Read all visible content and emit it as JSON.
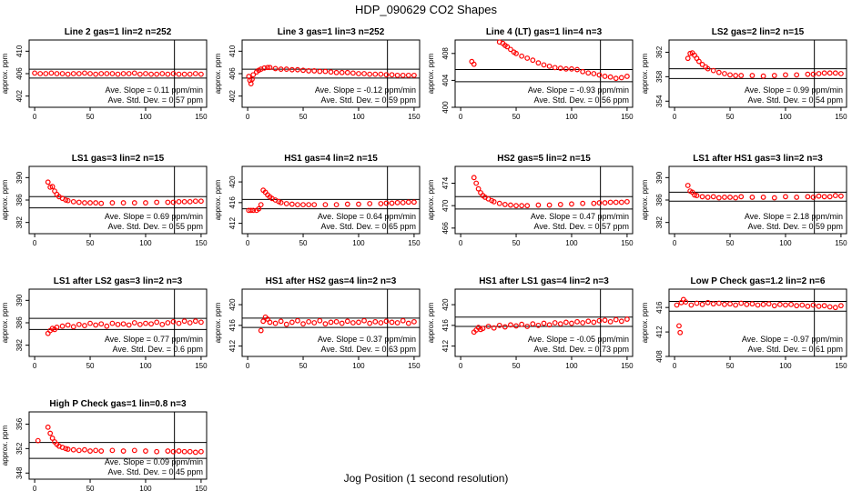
{
  "figure": {
    "title": "HDP_090629  CO2 Shapes",
    "xlabel": "Jog Position (1 second resolution)"
  },
  "chart_data": [
    {
      "type": "scatter",
      "title": "Line 2 gas=1 lin=2 n=252",
      "ylabel": "approx. ppm",
      "xlim": [
        -5,
        155
      ],
      "ylim": [
        400,
        412
      ],
      "yticks": [
        402,
        406,
        410
      ],
      "xticks": [
        0,
        50,
        100,
        150
      ],
      "vline": 126,
      "hlines": [
        406.8,
        405.2
      ],
      "slope_text": "Ave. Slope =  0.11  ppm/min",
      "std_text": "Ave. Std. Dev. =  0.57  ppm",
      "color": "#ff0000",
      "x": [
        0,
        5,
        10,
        15,
        20,
        25,
        30,
        35,
        40,
        45,
        50,
        55,
        60,
        65,
        70,
        75,
        80,
        85,
        90,
        95,
        100,
        105,
        110,
        115,
        120,
        125,
        130,
        135,
        140,
        145,
        150
      ],
      "y": [
        406.1,
        406.0,
        406.0,
        406.1,
        406.0,
        406.0,
        405.9,
        406.0,
        406.0,
        406.1,
        406.0,
        405.9,
        406.0,
        406.0,
        406.0,
        405.9,
        406.0,
        406.0,
        406.1,
        405.9,
        406.0,
        405.9,
        405.9,
        406.0,
        405.9,
        406.0,
        405.9,
        405.9,
        405.9,
        406.0,
        405.9
      ]
    },
    {
      "type": "scatter",
      "title": "Line 3 gas=1 lin=3 n=252",
      "ylabel": "approx. ppm",
      "xlim": [
        -5,
        155
      ],
      "ylim": [
        400,
        412
      ],
      "yticks": [
        402,
        406,
        410
      ],
      "xticks": [
        0,
        50,
        100,
        150
      ],
      "vline": 126,
      "hlines": [
        406.8,
        405.2
      ],
      "slope_text": "Ave. Slope =  -0.12  ppm/min",
      "std_text": "Ave. Std. Dev. =  0.59  ppm",
      "color": "#ff0000",
      "x": [
        1,
        2,
        3,
        4,
        5,
        8,
        10,
        12,
        15,
        18,
        20,
        25,
        30,
        35,
        40,
        45,
        50,
        55,
        60,
        65,
        70,
        75,
        80,
        85,
        90,
        95,
        100,
        105,
        110,
        115,
        120,
        125,
        130,
        135,
        140,
        145,
        150
      ],
      "y": [
        405.5,
        404.8,
        404.2,
        405.0,
        405.8,
        406.3,
        406.6,
        406.8,
        407.0,
        407.1,
        407.1,
        406.9,
        406.8,
        406.8,
        406.7,
        406.7,
        406.6,
        406.5,
        406.5,
        406.4,
        406.4,
        406.3,
        406.2,
        406.2,
        406.2,
        406.1,
        406.0,
        406.0,
        405.9,
        405.9,
        405.9,
        405.8,
        405.8,
        405.7,
        405.7,
        405.7,
        405.7
      ]
    },
    {
      "type": "scatter",
      "title": "Line 4 (LT) gas=1 lin=4 n=3",
      "ylabel": "approx. ppm",
      "xlim": [
        -5,
        155
      ],
      "ylim": [
        400,
        410
      ],
      "yticks": [
        400,
        404,
        408
      ],
      "xticks": [
        0,
        50,
        100,
        150
      ],
      "vline": 126,
      "hlines": [
        405.6,
        403.8
      ],
      "slope_text": "Ave. Slope =  -0.93  ppm/min",
      "std_text": "Ave. Std. Dev. =  0.56  ppm",
      "color": "#ff0000",
      "x": [
        10,
        12,
        35,
        38,
        40,
        42,
        45,
        48,
        50,
        55,
        60,
        65,
        70,
        75,
        80,
        85,
        90,
        95,
        100,
        105,
        110,
        115,
        120,
        125,
        130,
        135,
        140,
        145,
        150
      ],
      "y": [
        406.8,
        406.4,
        409.7,
        409.5,
        409.2,
        409.0,
        408.6,
        408.2,
        408.0,
        407.6,
        407.3,
        407.0,
        406.6,
        406.3,
        406.1,
        405.9,
        405.8,
        405.7,
        405.7,
        405.6,
        405.3,
        405.1,
        405.0,
        404.8,
        404.6,
        404.5,
        404.3,
        404.4,
        404.6
      ]
    },
    {
      "type": "scatter",
      "title": "LS2 gas=2 lin=2 n=15",
      "ylabel": "approx. ppm",
      "xlim": [
        -5,
        155
      ],
      "ylim": [
        353,
        364
      ],
      "yticks": [
        354,
        358,
        362
      ],
      "xticks": [
        0,
        50,
        100,
        150
      ],
      "vline": 126,
      "hlines": [
        359.3,
        357.7
      ],
      "slope_text": "Ave. Slope =  0.99  ppm/min",
      "std_text": "Ave. Std. Dev. =  0.54  ppm",
      "color": "#ff0000",
      "x": [
        12,
        14,
        16,
        18,
        20,
        22,
        25,
        28,
        30,
        35,
        40,
        45,
        50,
        55,
        60,
        70,
        80,
        90,
        100,
        110,
        120,
        125,
        130,
        135,
        140,
        145,
        150
      ],
      "y": [
        361.0,
        361.8,
        361.9,
        361.5,
        361.0,
        360.5,
        360.0,
        359.6,
        359.3,
        359.0,
        358.7,
        358.5,
        358.3,
        358.2,
        358.2,
        358.2,
        358.1,
        358.2,
        358.3,
        358.3,
        358.4,
        358.4,
        358.5,
        358.6,
        358.6,
        358.6,
        358.5
      ]
    },
    {
      "type": "scatter",
      "title": "LS1 gas=3 lin=2 n=15",
      "ylabel": "approx. ppm",
      "xlim": [
        -5,
        155
      ],
      "ylim": [
        380,
        392
      ],
      "yticks": [
        382,
        386,
        390
      ],
      "xticks": [
        0,
        50,
        100,
        150
      ],
      "vline": 126,
      "hlines": [
        386.6,
        384.6
      ],
      "slope_text": "Ave. Slope =  0.69  ppm/min",
      "std_text": "Ave. Std. Dev. =  0.55  ppm",
      "color": "#ff0000",
      "x": [
        12,
        14,
        16,
        18,
        20,
        22,
        25,
        28,
        30,
        35,
        40,
        45,
        50,
        55,
        60,
        70,
        80,
        90,
        100,
        110,
        120,
        125,
        130,
        135,
        140,
        145,
        150
      ],
      "y": [
        389.2,
        388.3,
        388.4,
        387.6,
        387.0,
        386.6,
        386.3,
        386.0,
        385.9,
        385.7,
        385.6,
        385.5,
        385.5,
        385.5,
        385.4,
        385.5,
        385.5,
        385.5,
        385.5,
        385.6,
        385.6,
        385.6,
        385.7,
        385.7,
        385.7,
        385.8,
        385.8
      ]
    },
    {
      "type": "scatter",
      "title": "HS1 gas=4 lin=2 n=15",
      "ylabel": "approx. ppm",
      "xlim": [
        -5,
        155
      ],
      "ylim": [
        410,
        423
      ],
      "yticks": [
        412,
        416,
        420
      ],
      "xticks": [
        0,
        50,
        100,
        150
      ],
      "vline": 126,
      "hlines": [
        416.6,
        414.8
      ],
      "slope_text": "Ave. Slope =  0.64  ppm/min",
      "std_text": "Ave. Std. Dev. =  0.65  ppm",
      "color": "#ff0000",
      "x": [
        1,
        3,
        5,
        8,
        10,
        12,
        14,
        16,
        18,
        20,
        22,
        25,
        28,
        30,
        35,
        40,
        45,
        50,
        55,
        60,
        70,
        80,
        90,
        100,
        110,
        120,
        125,
        130,
        135,
        140,
        145,
        150
      ],
      "y": [
        414.5,
        414.5,
        414.5,
        414.5,
        414.8,
        415.6,
        418.4,
        418.0,
        417.5,
        417.1,
        416.8,
        416.5,
        416.2,
        416.0,
        415.8,
        415.7,
        415.6,
        415.6,
        415.6,
        415.6,
        415.6,
        415.6,
        415.7,
        415.7,
        415.8,
        415.8,
        415.9,
        415.9,
        416.0,
        416.0,
        416.1,
        416.1
      ]
    },
    {
      "type": "scatter",
      "title": "HS2 gas=5 lin=2 n=15",
      "ylabel": "approx. ppm",
      "xlim": [
        -5,
        155
      ],
      "ylim": [
        465,
        477
      ],
      "yticks": [
        466,
        470,
        474
      ],
      "xticks": [
        0,
        50,
        100,
        150
      ],
      "vline": 126,
      "hlines": [
        471.6,
        469.4
      ],
      "slope_text": "Ave. Slope =  0.47  ppm/min",
      "std_text": "Ave. Std. Dev. =  0.57  ppm",
      "color": "#ff0000",
      "x": [
        12,
        14,
        16,
        18,
        20,
        22,
        25,
        28,
        30,
        35,
        40,
        45,
        50,
        55,
        60,
        70,
        80,
        90,
        100,
        110,
        120,
        125,
        130,
        135,
        140,
        145,
        150
      ],
      "y": [
        475.0,
        474.0,
        473.0,
        472.3,
        471.8,
        471.5,
        471.2,
        470.9,
        470.7,
        470.4,
        470.2,
        470.1,
        470.0,
        470.0,
        470.0,
        470.1,
        470.1,
        470.2,
        470.3,
        470.4,
        470.4,
        470.5,
        470.5,
        470.6,
        470.6,
        470.6,
        470.7
      ]
    },
    {
      "type": "scatter",
      "title": "LS1 after HS1 gas=3 lin=2 n=3",
      "ylabel": "approx. ppm",
      "xlim": [
        -5,
        155
      ],
      "ylim": [
        380,
        392
      ],
      "yticks": [
        382,
        386,
        390
      ],
      "xticks": [
        0,
        50,
        100,
        150
      ],
      "vline": 126,
      "hlines": [
        387.4,
        385.8
      ],
      "slope_text": "Ave. Slope =  2.18  ppm/min",
      "std_text": "Ave. Std. Dev. =  0.59  ppm",
      "color": "#ff0000",
      "x": [
        12,
        14,
        16,
        18,
        20,
        25,
        30,
        35,
        40,
        45,
        50,
        55,
        60,
        70,
        80,
        90,
        100,
        110,
        120,
        125,
        130,
        135,
        140,
        145,
        150
      ],
      "y": [
        388.6,
        387.6,
        387.4,
        386.9,
        386.8,
        386.6,
        386.5,
        386.6,
        386.4,
        386.5,
        386.5,
        386.4,
        386.6,
        386.5,
        386.5,
        386.4,
        386.6,
        386.5,
        386.6,
        386.5,
        386.7,
        386.6,
        386.6,
        386.8,
        386.7
      ]
    },
    {
      "type": "scatter",
      "title": "LS1 after LS2 gas=3 lin=2 n=3",
      "ylabel": "approx. ppm",
      "xlim": [
        -5,
        155
      ],
      "ylim": [
        380,
        392
      ],
      "yticks": [
        382,
        386,
        390
      ],
      "xticks": [
        0,
        50,
        100,
        150
      ],
      "vline": 126,
      "hlines": [
        386.8,
        384.8
      ],
      "slope_text": "Ave. Slope =  0.77  ppm/min",
      "std_text": "Ave. Std. Dev. =  0.6  ppm",
      "color": "#ff0000",
      "x": [
        12,
        14,
        16,
        18,
        20,
        25,
        30,
        35,
        40,
        45,
        50,
        55,
        60,
        65,
        70,
        75,
        80,
        85,
        90,
        95,
        100,
        105,
        110,
        115,
        120,
        125,
        130,
        135,
        140,
        145,
        150
      ],
      "y": [
        384.1,
        384.6,
        385.0,
        384.8,
        385.2,
        385.4,
        385.6,
        385.3,
        385.7,
        385.5,
        385.9,
        385.6,
        385.8,
        385.4,
        385.9,
        385.7,
        385.8,
        385.6,
        386.0,
        385.7,
        385.9,
        385.8,
        386.1,
        385.7,
        386.0,
        386.2,
        385.9,
        386.3,
        386.0,
        386.3,
        386.1
      ]
    },
    {
      "type": "scatter",
      "title": "HS1 after HS2 gas=4 lin=2 n=3",
      "ylabel": "approx. ppm",
      "xlim": [
        -5,
        155
      ],
      "ylim": [
        410,
        423
      ],
      "yticks": [
        412,
        416,
        420
      ],
      "xticks": [
        0,
        50,
        100,
        150
      ],
      "vline": 126,
      "hlines": [
        417.4,
        415.6
      ],
      "slope_text": "Ave. Slope =  0.37  ppm/min",
      "std_text": "Ave. Std. Dev. =  0.63  ppm",
      "color": "#ff0000",
      "x": [
        12,
        14,
        16,
        18,
        20,
        25,
        30,
        35,
        40,
        45,
        50,
        55,
        60,
        65,
        70,
        75,
        80,
        85,
        90,
        95,
        100,
        105,
        110,
        115,
        120,
        125,
        130,
        135,
        140,
        145,
        150
      ],
      "y": [
        415.0,
        416.8,
        417.6,
        417.2,
        416.6,
        416.4,
        416.8,
        416.2,
        416.6,
        416.9,
        416.3,
        416.7,
        416.5,
        416.9,
        416.3,
        416.6,
        416.7,
        416.4,
        416.8,
        416.5,
        416.6,
        416.9,
        416.4,
        416.7,
        416.5,
        416.8,
        416.6,
        416.5,
        416.9,
        416.4,
        416.7
      ]
    },
    {
      "type": "scatter",
      "title": "HS1 after LS1 gas=4 lin=2 n=3",
      "ylabel": "approx. ppm",
      "xlim": [
        -5,
        155
      ],
      "ylim": [
        410,
        423
      ],
      "yticks": [
        412,
        416,
        420
      ],
      "xticks": [
        0,
        50,
        100,
        150
      ],
      "vline": 126,
      "hlines": [
        417.6,
        415.8
      ],
      "slope_text": "Ave. Slope =  -0.05  ppm/min",
      "std_text": "Ave. Std. Dev. =  0.73  ppm",
      "color": "#ff0000",
      "x": [
        12,
        14,
        16,
        18,
        20,
        25,
        30,
        35,
        40,
        45,
        50,
        55,
        60,
        65,
        70,
        75,
        80,
        85,
        90,
        95,
        100,
        105,
        110,
        115,
        120,
        125,
        130,
        135,
        140,
        145,
        150
      ],
      "y": [
        414.7,
        415.1,
        415.6,
        415.2,
        415.4,
        415.8,
        415.5,
        416.0,
        415.7,
        416.1,
        415.9,
        416.2,
        415.8,
        416.3,
        416.0,
        416.4,
        416.1,
        416.5,
        416.3,
        416.6,
        416.4,
        416.7,
        416.5,
        416.8,
        416.6,
        416.9,
        417.0,
        416.7,
        417.1,
        416.8,
        417.2
      ]
    },
    {
      "type": "scatter",
      "title": "Low P Check gas=1.2 lin=2 n=6",
      "ylabel": "approx. ppm",
      "xlim": [
        -5,
        155
      ],
      "ylim": [
        408,
        419
      ],
      "yticks": [
        408,
        412,
        416
      ],
      "xticks": [
        0,
        50,
        100,
        150
      ],
      "vline": 126,
      "hlines": [
        417.0,
        415.4
      ],
      "slope_text": "Ave. Slope =  -0.97  ppm/min",
      "std_text": "Ave. Std. Dev. =  0.61  ppm",
      "color": "#ff0000",
      "x": [
        2,
        4,
        5,
        6,
        8,
        10,
        15,
        20,
        25,
        30,
        35,
        40,
        45,
        50,
        55,
        60,
        65,
        70,
        75,
        80,
        85,
        90,
        95,
        100,
        105,
        110,
        115,
        120,
        125,
        130,
        135,
        140,
        145,
        150
      ],
      "y": [
        416.4,
        413.0,
        411.9,
        416.8,
        417.3,
        416.9,
        416.4,
        416.7,
        416.5,
        416.8,
        416.6,
        416.7,
        416.5,
        416.6,
        416.4,
        416.7,
        416.5,
        416.6,
        416.4,
        416.5,
        416.6,
        416.3,
        416.5,
        416.4,
        416.5,
        416.3,
        416.4,
        416.2,
        416.4,
        416.2,
        416.3,
        416.1,
        416.0,
        416.3
      ]
    },
    {
      "type": "scatter",
      "title": "High P Check gas=1 lin=0.8 n=3",
      "ylabel": "approx. ppm",
      "xlim": [
        -5,
        155
      ],
      "ylim": [
        347,
        358
      ],
      "yticks": [
        348,
        352,
        356
      ],
      "xticks": [
        0,
        50,
        100,
        150
      ],
      "vline": 126,
      "hlines": [
        353.0,
        350.4
      ],
      "slope_text": "Ave. Slope =  0.09  ppm/min",
      "std_text": "Ave. Std. Dev. =  0.45  ppm",
      "color": "#ff0000",
      "x": [
        3,
        12,
        14,
        16,
        18,
        20,
        22,
        25,
        28,
        30,
        35,
        40,
        45,
        50,
        55,
        60,
        70,
        80,
        90,
        100,
        110,
        120,
        125,
        130,
        135,
        140,
        145,
        150
      ],
      "y": [
        353.3,
        355.5,
        354.5,
        353.7,
        353.1,
        352.7,
        352.4,
        352.2,
        352.0,
        351.9,
        351.8,
        351.7,
        351.8,
        351.6,
        351.7,
        351.6,
        351.7,
        351.6,
        351.7,
        351.6,
        351.5,
        351.6,
        351.5,
        351.6,
        351.5,
        351.5,
        351.4,
        351.5
      ]
    }
  ]
}
